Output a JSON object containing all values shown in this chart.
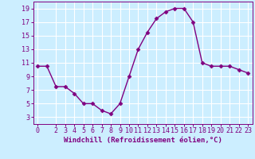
{
  "x": [
    0,
    1,
    2,
    3,
    4,
    5,
    6,
    7,
    8,
    9,
    10,
    11,
    12,
    13,
    14,
    15,
    16,
    17,
    18,
    19,
    20,
    21,
    22,
    23
  ],
  "y": [
    10.5,
    10.5,
    7.5,
    7.5,
    6.5,
    5.0,
    5.0,
    4.0,
    3.5,
    5.0,
    9.0,
    13.0,
    15.5,
    17.5,
    18.5,
    19.0,
    19.0,
    17.0,
    11.0,
    10.5,
    10.5,
    10.5,
    10.0,
    9.5
  ],
  "line_color": "#800080",
  "marker": "D",
  "marker_size": 2.5,
  "linewidth": 1.0,
  "background_color": "#cceeff",
  "grid_color": "#ffffff",
  "xlabel": "Windchill (Refroidissement éolien,°C)",
  "xlabel_color": "#800080",
  "xlabel_fontsize": 6.5,
  "tick_color": "#800080",
  "tick_fontsize": 6.0,
  "ylim": [
    2,
    20
  ],
  "xlim": [
    -0.5,
    23.5
  ],
  "yticks": [
    3,
    5,
    7,
    9,
    11,
    13,
    15,
    17,
    19
  ],
  "xticks": [
    0,
    2,
    3,
    4,
    5,
    6,
    7,
    8,
    9,
    10,
    11,
    12,
    13,
    14,
    15,
    16,
    17,
    18,
    19,
    20,
    21,
    22,
    23
  ]
}
